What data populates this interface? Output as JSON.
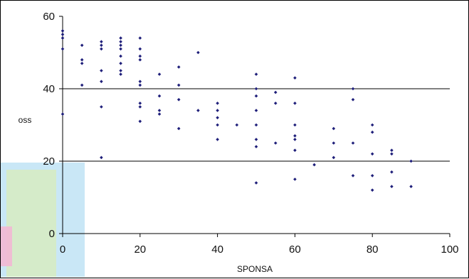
{
  "chart_data": {
    "type": "scatter",
    "title": "",
    "xlabel": "SPONSA",
    "ylabel": "OSS",
    "xlim": [
      0,
      100
    ],
    "ylim": [
      0,
      60
    ],
    "x_ticks": [
      "0",
      "20",
      "40",
      "60",
      "80",
      "100"
    ],
    "y_ticks": [
      "0",
      "20",
      "40",
      "60"
    ],
    "gridlines_y": [
      20,
      40
    ],
    "grid": true,
    "legend": "none",
    "marker_color": "#1f1f7a",
    "points": [
      [
        0,
        33
      ],
      [
        0,
        51
      ],
      [
        0,
        54
      ],
      [
        0,
        55
      ],
      [
        0,
        56
      ],
      [
        5,
        41
      ],
      [
        5,
        47
      ],
      [
        5,
        48
      ],
      [
        5,
        52
      ],
      [
        10,
        21
      ],
      [
        10,
        35
      ],
      [
        10,
        42
      ],
      [
        10,
        45
      ],
      [
        10,
        51
      ],
      [
        10,
        52
      ],
      [
        10,
        53
      ],
      [
        15,
        44
      ],
      [
        15,
        45
      ],
      [
        15,
        47
      ],
      [
        15,
        49
      ],
      [
        15,
        51
      ],
      [
        15,
        52
      ],
      [
        15,
        53
      ],
      [
        15,
        54
      ],
      [
        20,
        31
      ],
      [
        20,
        35
      ],
      [
        20,
        36
      ],
      [
        20,
        41
      ],
      [
        20,
        42
      ],
      [
        20,
        48
      ],
      [
        20,
        49
      ],
      [
        20,
        51
      ],
      [
        20,
        54
      ],
      [
        25,
        33
      ],
      [
        25,
        34
      ],
      [
        25,
        38
      ],
      [
        25,
        44
      ],
      [
        30,
        29
      ],
      [
        30,
        37
      ],
      [
        30,
        41
      ],
      [
        30,
        46
      ],
      [
        35,
        34
      ],
      [
        35,
        50
      ],
      [
        40,
        26
      ],
      [
        40,
        30
      ],
      [
        40,
        32
      ],
      [
        40,
        34
      ],
      [
        40,
        36
      ],
      [
        45,
        30
      ],
      [
        50,
        14
      ],
      [
        50,
        24
      ],
      [
        50,
        26
      ],
      [
        50,
        30
      ],
      [
        50,
        34
      ],
      [
        50,
        38
      ],
      [
        50,
        40
      ],
      [
        50,
        44
      ],
      [
        55,
        25
      ],
      [
        55,
        36
      ],
      [
        55,
        39
      ],
      [
        60,
        15
      ],
      [
        60,
        23
      ],
      [
        60,
        26
      ],
      [
        60,
        27
      ],
      [
        60,
        30
      ],
      [
        60,
        36
      ],
      [
        60,
        43
      ],
      [
        65,
        19
      ],
      [
        70,
        21
      ],
      [
        70,
        25
      ],
      [
        70,
        29
      ],
      [
        75,
        16
      ],
      [
        75,
        25
      ],
      [
        75,
        37
      ],
      [
        75,
        40
      ],
      [
        80,
        12
      ],
      [
        80,
        16
      ],
      [
        80,
        22
      ],
      [
        80,
        28
      ],
      [
        80,
        30
      ],
      [
        85,
        13
      ],
      [
        85,
        17
      ],
      [
        85,
        22
      ],
      [
        85,
        23
      ],
      [
        90,
        13
      ],
      [
        90,
        20
      ]
    ]
  }
}
